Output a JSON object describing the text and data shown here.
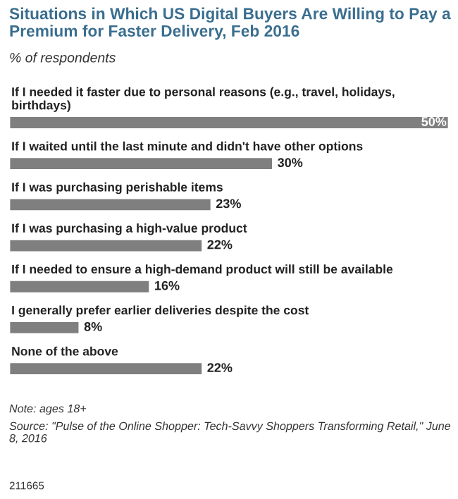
{
  "chart_data": {
    "type": "bar",
    "orientation": "horizontal",
    "title": "Situations in Which US Digital Buyers Are Willing to Pay a Premium for Faster Delivery, Feb 2016",
    "subtitle": "% of respondents",
    "categories": [
      "If I needed it faster due to personal reasons (e.g., travel, holidays, birthdays)",
      "If I waited until the last minute and didn't have other options",
      "If I was purchasing perishable items",
      "If I was purchasing a high-value product",
      "If I needed to ensure a high-demand product will still be available",
      "I generally prefer earlier deliveries despite the cost",
      "None of the above"
    ],
    "values": [
      50,
      30,
      23,
      22,
      16,
      8,
      22
    ],
    "value_labels": [
      "50%",
      "30%",
      "23%",
      "22%",
      "16%",
      "8%",
      "22%"
    ],
    "color": "#7f7f7f",
    "annotations": [
      "Note: ages 18+",
      "Source: \"Pulse of the Online Shopper: Tech-Savvy Shoppers Transforming Retail,\" June 8, 2016",
      "211665"
    ]
  }
}
